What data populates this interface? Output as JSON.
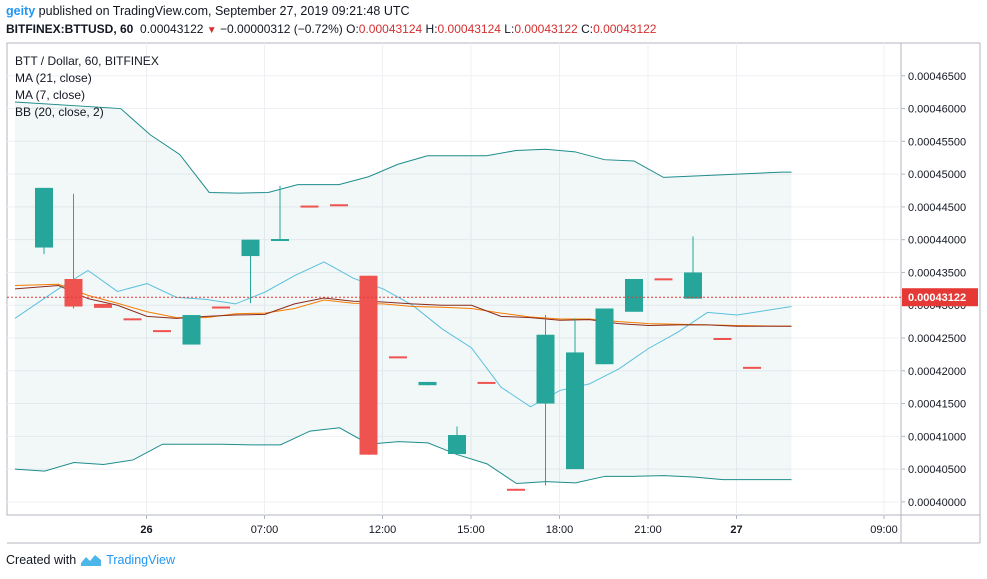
{
  "header": {
    "user": "geity",
    "published_text": "published on TradingView.com, September 27, 2019 09:21:48 UTC",
    "symbol": "BITFINEX:BTTUSD, 60",
    "last": "0.00043122",
    "change": "−0.00000312 (−0.72%)",
    "o_label": "O:",
    "o_value": "0.00043124",
    "h_label": "H:",
    "h_value": "0.00043124",
    "l_label": "L:",
    "l_value": "0.00043122",
    "c_label": "C:",
    "c_value": "0.00043122"
  },
  "legend": {
    "title": "BTT / Dollar, 60, BITFINEX",
    "ma21": "MA (21, close)",
    "ma7": "MA (7, close)",
    "bb": "BB (20, close, 2)"
  },
  "footer": {
    "created_with": "Created with",
    "brand": "TradingView"
  },
  "colors": {
    "up": "#26a69a",
    "down": "#ef5350",
    "bb": "#1e8c8c",
    "ma7": "#5bc0de",
    "ma21": "#8b2c1e",
    "maX": "#f57c00",
    "price_line": "#e53935"
  },
  "chart_data": {
    "type": "candlestick",
    "ylim": [
      0.000398,
      0.00047
    ],
    "y_ticks": [
      "0.00040000",
      "0.00040500",
      "0.00041000",
      "0.00041500",
      "0.00042000",
      "0.00042500",
      "0.00043000",
      "0.00043500",
      "0.00044000",
      "0.00044500",
      "0.00045000",
      "0.00045500",
      "0.00046000",
      "0.00046500"
    ],
    "x_ticks": [
      {
        "label": "26",
        "bold": true,
        "idx": 3
      },
      {
        "label": "07:00",
        "bold": false,
        "idx": 7
      },
      {
        "label": "12:00",
        "bold": false,
        "idx": 11
      },
      {
        "label": "15:00",
        "bold": false,
        "idx": 14
      },
      {
        "label": "18:00",
        "bold": false,
        "idx": 17
      },
      {
        "label": "21:00",
        "bold": false,
        "idx": 20
      },
      {
        "label": "27",
        "bold": true,
        "idx": 23
      },
      {
        "label": "09:00",
        "bold": false,
        "idx": 28
      }
    ],
    "current_price": "0.00043122",
    "current_value": 0.00043122,
    "candles": [
      {
        "o": 0.0004388,
        "h": 0.0004479,
        "l": 0.0004378,
        "c": 0.0004479
      },
      {
        "o": 0.000434,
        "h": 0.000447,
        "l": 0.0004295,
        "c": 0.0004298
      },
      {
        "o": 0.0004302,
        "h": 0.0004302,
        "l": 0.0004296,
        "c": 0.0004296
      },
      {
        "o": 0.000428,
        "h": 0.000428,
        "l": 0.0004278,
        "c": 0.0004278
      },
      {
        "o": 0.0004262,
        "h": 0.0004262,
        "l": 0.0004261,
        "c": 0.0004261
      },
      {
        "o": 0.000424,
        "h": 0.0004285,
        "l": 0.000424,
        "c": 0.0004285
      },
      {
        "o": 0.0004298,
        "h": 0.0004298,
        "l": 0.0004297,
        "c": 0.0004297
      },
      {
        "o": 0.0004375,
        "h": 0.00044,
        "l": 0.0004303,
        "c": 0.00044
      },
      {
        "o": 0.0004401,
        "h": 0.0004482,
        "l": 0.0004399,
        "c": 0.0004401
      },
      {
        "o": 0.0004452,
        "h": 0.0004452,
        "l": 0.0004451,
        "c": 0.0004451
      },
      {
        "o": 0.0004454,
        "h": 0.0004454,
        "l": 0.0004453,
        "c": 0.0004453
      },
      {
        "o": 0.0004345,
        "h": 0.0004345,
        "l": 0.0004072,
        "c": 0.0004072
      },
      {
        "o": 0.0004222,
        "h": 0.0004222,
        "l": 0.0004221,
        "c": 0.0004221
      },
      {
        "o": 0.0004178,
        "h": 0.0004183,
        "l": 0.0004178,
        "c": 0.0004183
      },
      {
        "o": 0.0004073,
        "h": 0.0004115,
        "l": 0.0004073,
        "c": 0.0004102
      },
      {
        "o": 0.0004183,
        "h": 0.0004183,
        "l": 0.0004182,
        "c": 0.0004182
      },
      {
        "o": 0.000402,
        "h": 0.000402,
        "l": 0.0004019,
        "c": 0.0004019
      },
      {
        "o": 0.000415,
        "h": 0.0004285,
        "l": 0.0004025,
        "c": 0.0004255
      },
      {
        "o": 0.000405,
        "h": 0.000428,
        "l": 0.000405,
        "c": 0.0004228
      },
      {
        "o": 0.000421,
        "h": 0.0004295,
        "l": 0.000421,
        "c": 0.0004295
      },
      {
        "o": 0.000429,
        "h": 0.000434,
        "l": 0.000429,
        "c": 0.000434
      },
      {
        "o": 0.0004341,
        "h": 0.0004341,
        "l": 0.000434,
        "c": 0.000434
      },
      {
        "o": 0.000431,
        "h": 0.0004405,
        "l": 0.000431,
        "c": 0.000435
      },
      {
        "o": 0.000425,
        "h": 0.000425,
        "l": 0.0004249,
        "c": 0.0004249
      },
      {
        "o": 0.0004206,
        "h": 0.0004206,
        "l": 0.0004205,
        "c": 0.0004205
      }
    ],
    "bb_upper": [
      0.000461,
      0.000459,
      0.000453,
      0.000447,
      0.000447,
      0.000448,
      0.000448,
      0.000451,
      0.000453,
      0.000453,
      0.000454,
      0.000453,
      0.000451,
      0.00045,
      0.00045,
      0.00045,
      0.00045,
      0.00045,
      0.00045,
      0.00045
    ],
    "bb_upper_x": [
      2.6,
      3.6,
      4.6,
      5.6,
      6.6,
      7.6,
      8.6,
      10.0,
      11.0,
      12.0,
      13.0,
      14.0,
      15.0,
      16.0,
      17.0,
      18.0,
      19.0,
      20.0,
      21.0,
      25.0
    ],
    "bb_upper_vals": [
      0.00046,
      0.000456,
      0.000453,
      0.0004472,
      0.0004471,
      0.0004472,
      0.0004484,
      0.0004484,
      0.0004496,
      0.0004515,
      0.0004528,
      0.0004528,
      0.0004528,
      0.0004536,
      0.0004538,
      0.0004534,
      0.0004522,
      0.000452,
      0.0004495,
      0.0004503
    ],
    "bb_lower_x": [
      0,
      1,
      2,
      3,
      4,
      5,
      6,
      7,
      8,
      9,
      10,
      11,
      12,
      13,
      14,
      15,
      16,
      17,
      18,
      19,
      20,
      21,
      22,
      23,
      24,
      25
    ],
    "bb_lower_vals": [
      0.000405,
      0.0004047,
      0.000406,
      0.0004057,
      0.0004064,
      0.0004088,
      0.0004088,
      0.0004088,
      0.0004087,
      0.0004087,
      0.0004108,
      0.0004113,
      0.0004088,
      0.0004092,
      0.000409,
      0.0004072,
      0.0004058,
      0.0004028,
      0.0004031,
      0.0004029,
      0.0004039,
      0.0004039,
      0.000404,
      0.0004038,
      0.0004034,
      0.0004034
    ],
    "ma7_x": [
      0,
      1,
      2,
      3,
      4,
      5,
      6,
      7,
      8,
      9,
      10,
      11,
      12,
      13,
      14,
      15,
      16,
      17,
      18,
      19,
      20,
      21,
      22,
      23,
      24,
      25
    ],
    "ma7_vals": [
      0.000428,
      0.0004325,
      0.0004353,
      0.0004321,
      0.0004333,
      0.0004312,
      0.0004309,
      0.0004302,
      0.000432,
      0.0004345,
      0.0004366,
      0.0004341,
      0.0004325,
      0.00043,
      0.0004264,
      0.0004235,
      0.0004175,
      0.0004145,
      0.000417,
      0.000418,
      0.0004203,
      0.0004234,
      0.0004259,
      0.0004289,
      0.0004285,
      0.0004298
    ],
    "ma21_x": [
      0,
      1,
      2,
      3,
      4,
      5,
      6,
      7,
      8,
      9,
      10,
      11,
      12,
      13,
      14,
      15,
      16,
      17,
      18,
      19,
      20,
      21,
      22,
      23,
      24,
      25
    ],
    "ma21_vals": [
      0.0004325,
      0.000433,
      0.000431,
      0.00043,
      0.0004283,
      0.000428,
      0.0004283,
      0.0004285,
      0.0004286,
      0.0004302,
      0.0004311,
      0.0004306,
      0.0004305,
      0.0004302,
      0.00043,
      0.00043,
      0.0004283,
      0.0004281,
      0.0004277,
      0.0004278,
      0.0004272,
      0.0004269,
      0.000427,
      0.000427,
      0.0004268,
      0.0004268
    ],
    "maX_x": [
      0,
      1,
      2,
      3,
      4,
      5,
      6,
      7,
      8,
      9,
      10,
      11,
      12,
      13,
      14,
      15,
      16,
      17,
      18,
      19,
      20,
      21,
      22,
      23,
      24,
      25
    ],
    "maX_vals": [
      0.000433,
      0.0004332,
      0.0004315,
      0.0004303,
      0.000429,
      0.0004281,
      0.0004281,
      0.0004287,
      0.0004288,
      0.0004295,
      0.0004308,
      0.0004303,
      0.0004302,
      0.0004298,
      0.0004297,
      0.0004295,
      0.0004288,
      0.0004282,
      0.0004279,
      0.0004279,
      0.0004275,
      0.0004272,
      0.0004271,
      0.000427,
      0.0004269,
      0.0004268
    ]
  }
}
